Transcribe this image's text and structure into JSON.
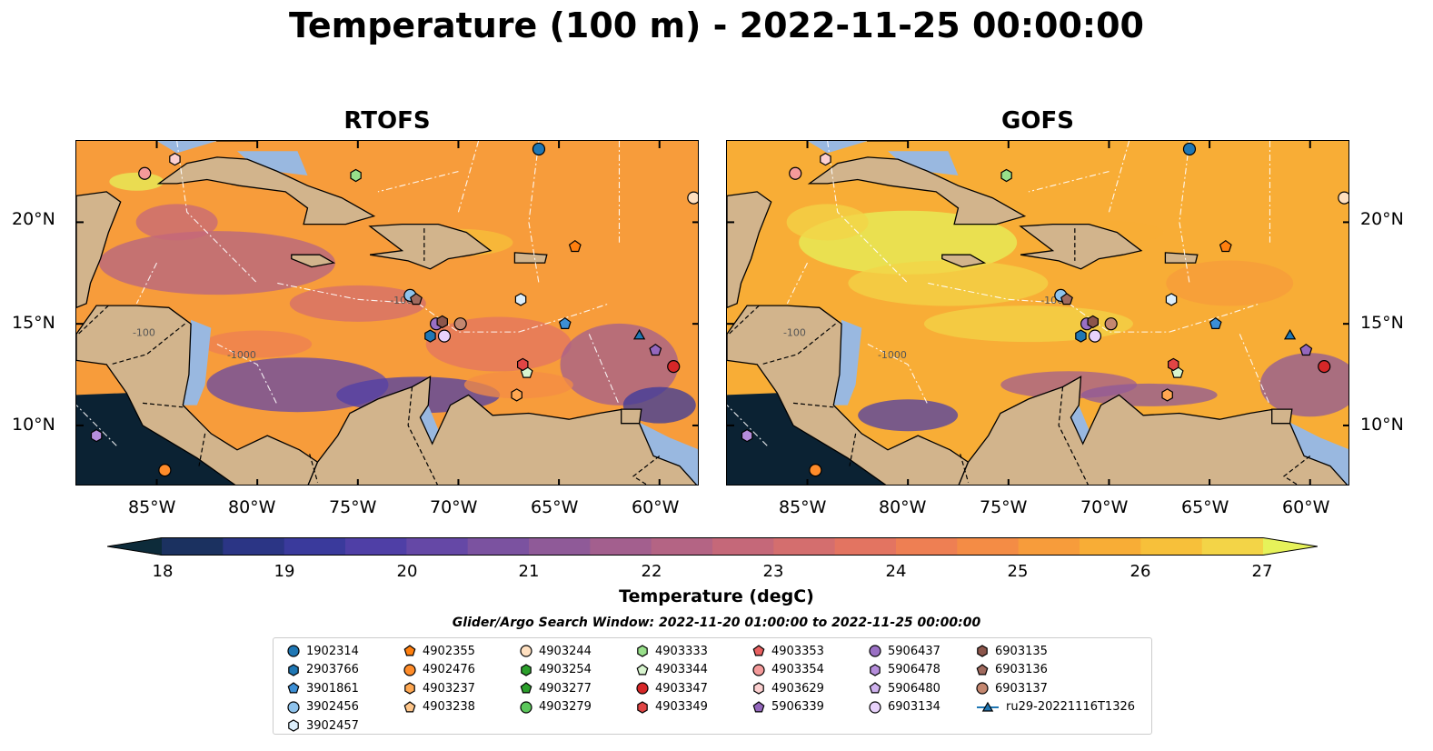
{
  "title": "Temperature (100 m) - 2022-11-25 00:00:00",
  "panels": [
    {
      "title": "RTOFS",
      "model": "rtofs"
    },
    {
      "title": "GOFS",
      "model": "gofs"
    }
  ],
  "map": {
    "lon_range": [
      -89,
      -58
    ],
    "lat_range": [
      7,
      24
    ],
    "lon_ticks": [
      "85°W",
      "80°W",
      "75°W",
      "70°W",
      "65°W",
      "60°W"
    ],
    "lat_ticks_left": [
      "20°N",
      "15°N",
      "10°N"
    ],
    "lat_ticks_right": [
      "20°N",
      "15°N",
      "10°N"
    ],
    "land_color": "#d2b48c",
    "shelf_color": "#99b8e0",
    "deep_color": "#0b2233",
    "isobath_labels": [
      "-1000",
      "-100"
    ]
  },
  "colorbar": {
    "min": 18,
    "max": 27,
    "ticks": [
      "18",
      "19",
      "20",
      "21",
      "22",
      "23",
      "24",
      "25",
      "26",
      "27"
    ],
    "label": "Temperature (degC)",
    "colors": [
      "#0d2b3a",
      "#1b3160",
      "#2b3585",
      "#3a3a9c",
      "#4f3fa6",
      "#6548a6",
      "#7b52a0",
      "#8f5a98",
      "#a35f8e",
      "#b46484",
      "#c56879",
      "#d46e6e",
      "#e37461",
      "#ee7f53",
      "#f48c45",
      "#f79c3b",
      "#f8ad36",
      "#f7c03a",
      "#f3d447",
      "#e6f25a"
    ]
  },
  "search_window": "Glider/Argo Search Window: 2022-11-20 01:00:00 to 2022-11-25 00:00:00",
  "legend": [
    {
      "label": "1902314",
      "shape": "circle",
      "color": "#1f77b4"
    },
    {
      "label": "2903766",
      "shape": "hexagon",
      "color": "#1f77b4"
    },
    {
      "label": "3901861",
      "shape": "pentagon",
      "color": "#3c8fd6"
    },
    {
      "label": "3902456",
      "shape": "circle",
      "color": "#8fc3ec"
    },
    {
      "label": "3902457",
      "shape": "hexagon",
      "color": "#dceefb"
    },
    {
      "label": "4902355",
      "shape": "pentagon",
      "color": "#ff7f0e"
    },
    {
      "label": "4902476",
      "shape": "circle",
      "color": "#ff8c2a"
    },
    {
      "label": "4903237",
      "shape": "hexagon",
      "color": "#ffa852"
    },
    {
      "label": "4903238",
      "shape": "pentagon",
      "color": "#ffc68a"
    },
    {
      "label": "4903244",
      "shape": "circle",
      "color": "#ffe0c0"
    },
    {
      "label": "4903254",
      "shape": "hexagon",
      "color": "#2ca02c"
    },
    {
      "label": "4903277",
      "shape": "pentagon",
      "color": "#2ca02c"
    },
    {
      "label": "4903279",
      "shape": "circle",
      "color": "#5cc85c"
    },
    {
      "label": "4903333",
      "shape": "hexagon",
      "color": "#98df8a"
    },
    {
      "label": "4903344",
      "shape": "pentagon",
      "color": "#d8f5cf"
    },
    {
      "label": "4903347",
      "shape": "circle",
      "color": "#d62728"
    },
    {
      "label": "4903349",
      "shape": "hexagon",
      "color": "#e04545"
    },
    {
      "label": "4903353",
      "shape": "pentagon",
      "color": "#e86060"
    },
    {
      "label": "4903354",
      "shape": "circle",
      "color": "#f49a9a"
    },
    {
      "label": "4903629",
      "shape": "hexagon",
      "color": "#fcd0d0"
    },
    {
      "label": "5906339",
      "shape": "pentagon",
      "color": "#9467bd"
    },
    {
      "label": "5906437",
      "shape": "circle",
      "color": "#9a70c4"
    },
    {
      "label": "5906478",
      "shape": "hexagon",
      "color": "#b58ddb"
    },
    {
      "label": "5906480",
      "shape": "pentagon",
      "color": "#cfb2ee"
    },
    {
      "label": "6903134",
      "shape": "circle",
      "color": "#e8d2fb"
    },
    {
      "label": "6903135",
      "shape": "hexagon",
      "color": "#8c564b"
    },
    {
      "label": "6903136",
      "shape": "pentagon",
      "color": "#a06a5e"
    },
    {
      "label": "6903137",
      "shape": "circle",
      "color": "#c48770"
    },
    {
      "label": "ru29-20221116T1326",
      "shape": "triangle-line",
      "color": "#1f77b4"
    }
  ],
  "markers": [
    {
      "id": "1902314",
      "lon": -66.0,
      "lat": 23.6
    },
    {
      "id": "3901861",
      "lon": -64.7,
      "lat": 15.0
    },
    {
      "id": "3902456",
      "lon": -72.4,
      "lat": 16.4
    },
    {
      "id": "3902457",
      "lon": -66.9,
      "lat": 16.2
    },
    {
      "id": "4902355",
      "lon": -64.2,
      "lat": 18.8
    },
    {
      "id": "4902476",
      "lon": -84.6,
      "lat": 7.8
    },
    {
      "id": "4903244",
      "lon": -58.3,
      "lat": 21.2
    },
    {
      "id": "4903333",
      "lon": -75.1,
      "lat": 22.3
    },
    {
      "id": "4903344",
      "lon": -66.6,
      "lat": 12.6
    },
    {
      "id": "4903347",
      "lon": -59.3,
      "lat": 12.9
    },
    {
      "id": "4903349",
      "lon": -66.8,
      "lat": 13.0
    },
    {
      "id": "4903354",
      "lon": -85.6,
      "lat": 22.4
    },
    {
      "id": "4903629",
      "lon": -84.1,
      "lat": 23.1
    },
    {
      "id": "5906339",
      "lon": -60.2,
      "lat": 13.7
    },
    {
      "id": "5906437",
      "lon": -71.1,
      "lat": 15.0
    },
    {
      "id": "5906478",
      "lon": -88.0,
      "lat": 9.5
    },
    {
      "id": "6903134",
      "lon": -70.7,
      "lat": 14.4
    },
    {
      "id": "6903135",
      "lon": -70.8,
      "lat": 15.1
    },
    {
      "id": "6903136",
      "lon": -72.1,
      "lat": 16.2
    },
    {
      "id": "6903137",
      "lon": -69.9,
      "lat": 15.0
    },
    {
      "id": "2903766",
      "lon": -71.4,
      "lat": 14.4
    },
    {
      "id": "4903237",
      "lon": -67.1,
      "lat": 11.5
    },
    {
      "id": "ru29-20221116T1326",
      "lon": -61.0,
      "lat": 14.4
    }
  ]
}
